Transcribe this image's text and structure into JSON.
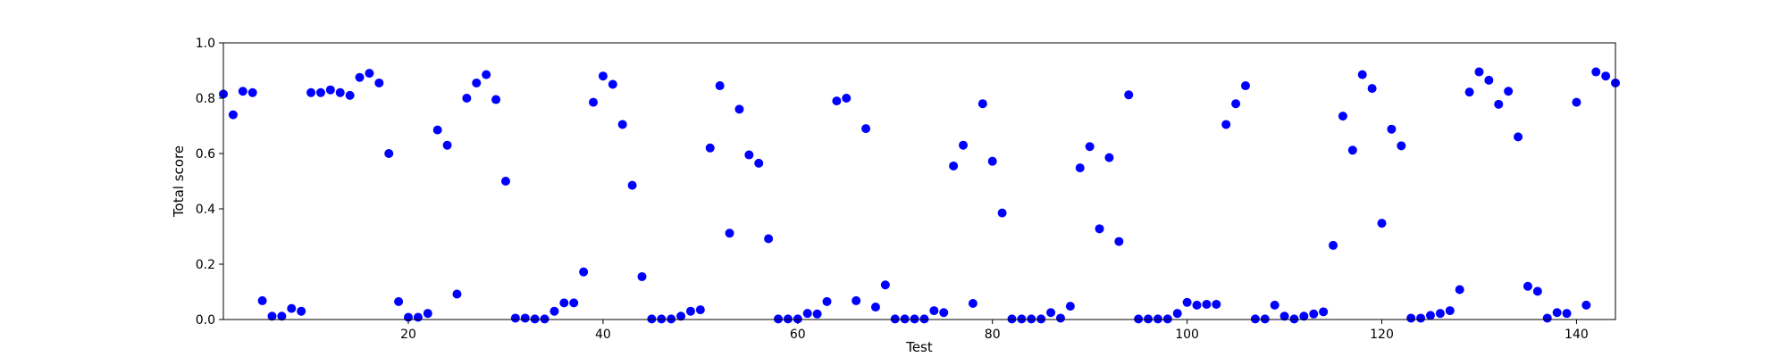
{
  "chart_data": {
    "type": "scatter",
    "title": "",
    "xlabel": "Test",
    "ylabel": "Total score",
    "xlim": [
      1,
      144
    ],
    "ylim": [
      0,
      1.0
    ],
    "xticks": [
      20,
      40,
      60,
      80,
      100,
      120,
      140
    ],
    "yticks": [
      0.0,
      0.2,
      0.4,
      0.6,
      0.8,
      1.0
    ],
    "xtick_labels": [
      "20",
      "40",
      "60",
      "80",
      "100",
      "120",
      "140"
    ],
    "ytick_labels": [
      "0.0",
      "0.2",
      "0.4",
      "0.6",
      "0.8",
      "1.0"
    ],
    "grid": false,
    "marker_color": "#0000ff",
    "series": [
      {
        "x": [
          1,
          2,
          3,
          4,
          5,
          6,
          7,
          8,
          9,
          10,
          11,
          12,
          13,
          14,
          15,
          16,
          17,
          18,
          19,
          20,
          21,
          22,
          23,
          24,
          25,
          26,
          27,
          28,
          29,
          30,
          31,
          32,
          33,
          34,
          35,
          36,
          37,
          38,
          39,
          40,
          41,
          42,
          43,
          44,
          45,
          46,
          47,
          48,
          49,
          50,
          51,
          52,
          53,
          54,
          55,
          56,
          57,
          58,
          59,
          60,
          61,
          62,
          63,
          64,
          65,
          66,
          67,
          68,
          69,
          70,
          71,
          72,
          73,
          74,
          75,
          76,
          77,
          78,
          79,
          80,
          81,
          82,
          83,
          84,
          85,
          86,
          87,
          88,
          89,
          90,
          91,
          92,
          93,
          94,
          95,
          96,
          97,
          98,
          99,
          100,
          101,
          102,
          103,
          104,
          105,
          106,
          107,
          108,
          109,
          110,
          111,
          112,
          113,
          114,
          115,
          116,
          117,
          118,
          119,
          120,
          121,
          122,
          123,
          124,
          125,
          126,
          127,
          128,
          129,
          130,
          131,
          132,
          133,
          134,
          135,
          136,
          137,
          138,
          139,
          140,
          141,
          142,
          143,
          144
        ],
        "y": [
          0.815,
          0.74,
          0.825,
          0.82,
          0.068,
          0.012,
          0.012,
          0.04,
          0.03,
          0.82,
          0.82,
          0.83,
          0.82,
          0.81,
          0.875,
          0.89,
          0.855,
          0.6,
          0.065,
          0.008,
          0.008,
          0.022,
          0.685,
          0.63,
          0.092,
          0.8,
          0.855,
          0.885,
          0.795,
          0.5,
          0.005,
          0.005,
          0.002,
          0.002,
          0.03,
          0.06,
          0.06,
          0.172,
          0.785,
          0.88,
          0.85,
          0.705,
          0.485,
          0.155,
          0.002,
          0.002,
          0.002,
          0.012,
          0.03,
          0.035,
          0.62,
          0.845,
          0.312,
          0.76,
          0.595,
          0.565,
          0.292,
          0.002,
          0.002,
          0.002,
          0.022,
          0.02,
          0.065,
          0.79,
          0.8,
          0.068,
          0.69,
          0.045,
          0.125,
          0.002,
          0.002,
          0.002,
          0.002,
          0.032,
          0.025,
          0.555,
          0.63,
          0.058,
          0.78,
          0.572,
          0.385,
          0.002,
          0.002,
          0.002,
          0.002,
          0.025,
          0.005,
          0.048,
          0.548,
          0.625,
          0.328,
          0.585,
          0.282,
          0.812,
          0.002,
          0.002,
          0.002,
          0.002,
          0.022,
          0.062,
          0.052,
          0.055,
          0.055,
          0.705,
          0.78,
          0.845,
          0.002,
          0.002,
          0.052,
          0.012,
          0.002,
          0.012,
          0.02,
          0.028,
          0.268,
          0.735,
          0.612,
          0.885,
          0.835,
          0.348,
          0.688,
          0.628,
          0.005,
          0.005,
          0.015,
          0.022,
          0.032,
          0.108,
          0.822,
          0.895,
          0.865,
          0.778,
          0.825,
          0.66,
          0.12,
          0.102,
          0.005,
          0.025,
          0.022,
          0.785,
          0.052,
          0.895,
          0.88,
          0.855
        ]
      }
    ]
  }
}
